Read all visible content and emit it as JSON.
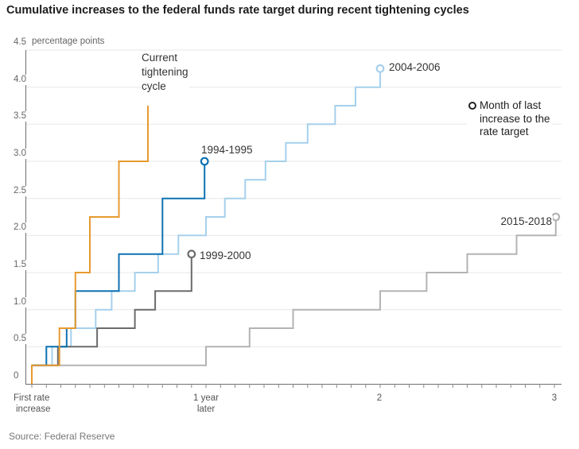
{
  "title": "Cumulative increases to the federal funds rate target during recent tightening cycles",
  "source": "Source: Federal Reserve",
  "y_axis": {
    "unit_label": "percentage points",
    "ticks": [
      {
        "v": 0,
        "label": "0"
      },
      {
        "v": 0.5,
        "label": "0.5"
      },
      {
        "v": 1,
        "label": "1.0"
      },
      {
        "v": 1.5,
        "label": "1.5"
      },
      {
        "v": 2,
        "label": "2.0"
      },
      {
        "v": 2.5,
        "label": "2.5"
      },
      {
        "v": 3,
        "label": "3.0"
      },
      {
        "v": 3.5,
        "label": "3.5"
      },
      {
        "v": 4,
        "label": "4.0"
      },
      {
        "v": 4.5,
        "label": "4.5"
      }
    ]
  },
  "x_axis": {
    "labels": [
      {
        "month": 0,
        "lines": [
          "First rate",
          "increase"
        ]
      },
      {
        "month": 12,
        "lines": [
          "1 year",
          "later"
        ]
      },
      {
        "month": 24,
        "lines": [
          "2"
        ]
      },
      {
        "month": 36,
        "lines": [
          "3"
        ]
      }
    ]
  },
  "legend": {
    "marker": "open-circle",
    "lines": [
      "Month of last",
      "increase to the",
      "rate target"
    ]
  },
  "chart_data": {
    "type": "line",
    "style": "step-after",
    "title": "Cumulative increases to the federal funds rate target during recent tightening cycles",
    "ylabel": "percentage points",
    "ylim": [
      0,
      4.5
    ],
    "x_unit": "months since first rate increase",
    "xlim": [
      0,
      36.5
    ],
    "x_labeled_ticks": [
      "First rate increase",
      "1 year later",
      "2",
      "3"
    ],
    "grid": "horizontal",
    "end_marker_meaning": "Month of last increase to the rate target",
    "series": [
      {
        "name": "2015-2018",
        "label": "2015-2018",
        "color": "#b3b3b3",
        "end_marker": true,
        "points": [
          [
            0,
            0.25
          ],
          [
            12,
            0.5
          ],
          [
            15,
            0.75
          ],
          [
            18,
            1
          ],
          [
            24,
            1.25
          ],
          [
            27.2,
            1.5
          ],
          [
            30,
            1.75
          ],
          [
            33.4,
            2
          ],
          [
            36.1,
            2.25
          ]
        ]
      },
      {
        "name": "2004-2006",
        "label": "2004-2006",
        "color": "#a5d0ec",
        "end_marker": true,
        "points": [
          [
            0,
            0.25
          ],
          [
            1.4,
            0.5
          ],
          [
            2.7,
            0.75
          ],
          [
            4.4,
            1
          ],
          [
            5.5,
            1.25
          ],
          [
            7.1,
            1.5
          ],
          [
            8.7,
            1.75
          ],
          [
            10.1,
            2
          ],
          [
            12,
            2.25
          ],
          [
            13.3,
            2.5
          ],
          [
            14.7,
            2.75
          ],
          [
            16.1,
            3
          ],
          [
            17.5,
            3.25
          ],
          [
            19,
            3.5
          ],
          [
            20.9,
            3.75
          ],
          [
            22.3,
            4
          ],
          [
            24,
            4.25
          ]
        ]
      },
      {
        "name": "1999-2000",
        "label": "1999-2000",
        "color": "#6b6b6b",
        "end_marker": true,
        "points": [
          [
            0,
            0.25
          ],
          [
            1.8,
            0.5
          ],
          [
            4.5,
            0.75
          ],
          [
            7.1,
            1
          ],
          [
            8.5,
            1.25
          ],
          [
            11,
            1.75
          ]
        ]
      },
      {
        "name": "1994-1995",
        "label": "1994-1995",
        "color": "#0d72b2",
        "end_marker": true,
        "points": [
          [
            0,
            0.25
          ],
          [
            1,
            0.5
          ],
          [
            2.4,
            0.75
          ],
          [
            3,
            1.25
          ],
          [
            6,
            1.75
          ],
          [
            9,
            2.5
          ],
          [
            11.9,
            3
          ]
        ]
      },
      {
        "name": "Current tightening cycle",
        "label": "Current tightening cycle",
        "label_lines": [
          "Current",
          "tightening",
          "cycle"
        ],
        "color": "#e79a2f",
        "end_marker": false,
        "points": [
          [
            0,
            0
          ],
          [
            0,
            0.25
          ],
          [
            1.9,
            0.75
          ],
          [
            3,
            1.5
          ],
          [
            4,
            2.25
          ],
          [
            6,
            3
          ],
          [
            8,
            3.75
          ]
        ]
      }
    ]
  }
}
